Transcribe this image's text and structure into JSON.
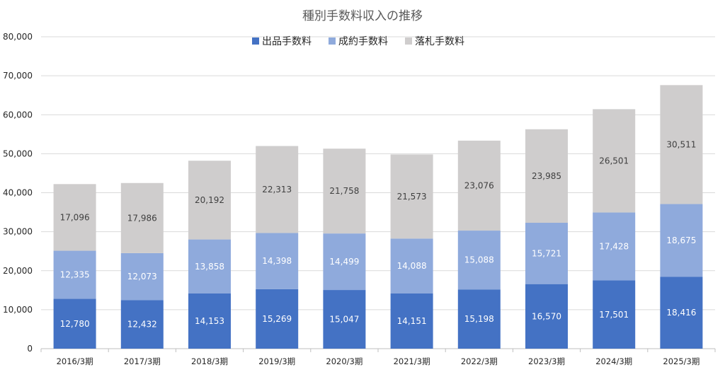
{
  "chart_data": {
    "type": "bar",
    "stacked": true,
    "title": "種別手数料収入の推移",
    "categories": [
      "2016/3期",
      "2017/3期",
      "2018/3期",
      "2019/3期",
      "2020/3期",
      "2021/3期",
      "2022/3期",
      "2023/3期",
      "2024/3期",
      "2025/3期"
    ],
    "series": [
      {
        "name": "出品手数料",
        "color": "#4472C4",
        "label_color": "#ffffff",
        "values": [
          12780,
          12432,
          14153,
          15269,
          15047,
          14151,
          15198,
          16570,
          17501,
          18416
        ],
        "labels": [
          "12,780",
          "12,432",
          "14,153",
          "15,269",
          "15,047",
          "14,151",
          "15,198",
          "16,570",
          "17,501",
          "18,416"
        ]
      },
      {
        "name": "成約手数料",
        "color": "#8FAADC",
        "label_color": "#ffffff",
        "values": [
          12335,
          12073,
          13858,
          14398,
          14499,
          14088,
          15088,
          15721,
          17428,
          18675
        ],
        "labels": [
          "12,335",
          "12,073",
          "13,858",
          "14,398",
          "14,499",
          "14,088",
          "15,088",
          "15,721",
          "17,428",
          "18,675"
        ]
      },
      {
        "name": "落札手数料",
        "color": "#CFCDCD",
        "label_color": "#404040",
        "values": [
          17096,
          17986,
          20192,
          22313,
          21758,
          21573,
          23076,
          23985,
          26501,
          30511
        ],
        "labels": [
          "17,096",
          "17,986",
          "20,192",
          "22,313",
          "21,758",
          "21,573",
          "23,076",
          "23,985",
          "26,501",
          "30,511"
        ]
      }
    ],
    "ylim": [
      0,
      80000
    ],
    "yticks": [
      0,
      10000,
      20000,
      30000,
      40000,
      50000,
      60000,
      70000,
      80000
    ],
    "ytick_labels": [
      "0",
      "10,000",
      "20,000",
      "30,000",
      "40,000",
      "50,000",
      "60,000",
      "70,000",
      "80,000"
    ],
    "grid": true,
    "legend": "top-center",
    "xlabel": "",
    "ylabel": ""
  }
}
